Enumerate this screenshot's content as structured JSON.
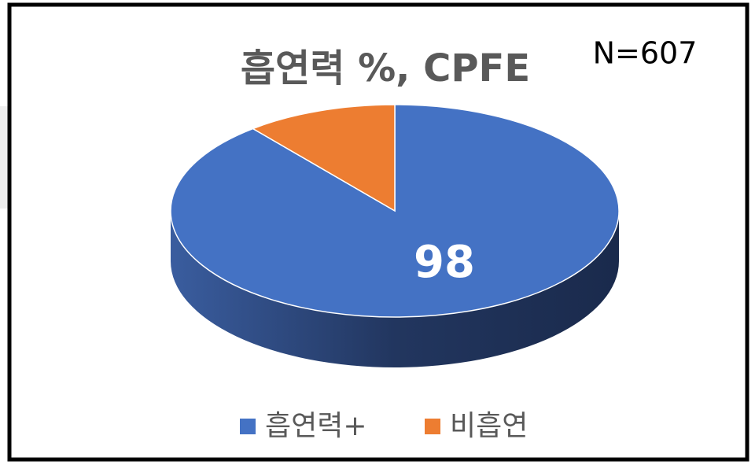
{
  "chart_data": {
    "type": "pie",
    "title": "흡연력 %, CPFE",
    "annotation": "N=607",
    "categories": [
      "흡연력+",
      "비흡연"
    ],
    "values": [
      98,
      12
    ],
    "colors": [
      "#4472c4",
      "#ed7d31"
    ],
    "legend": "bottom"
  }
}
